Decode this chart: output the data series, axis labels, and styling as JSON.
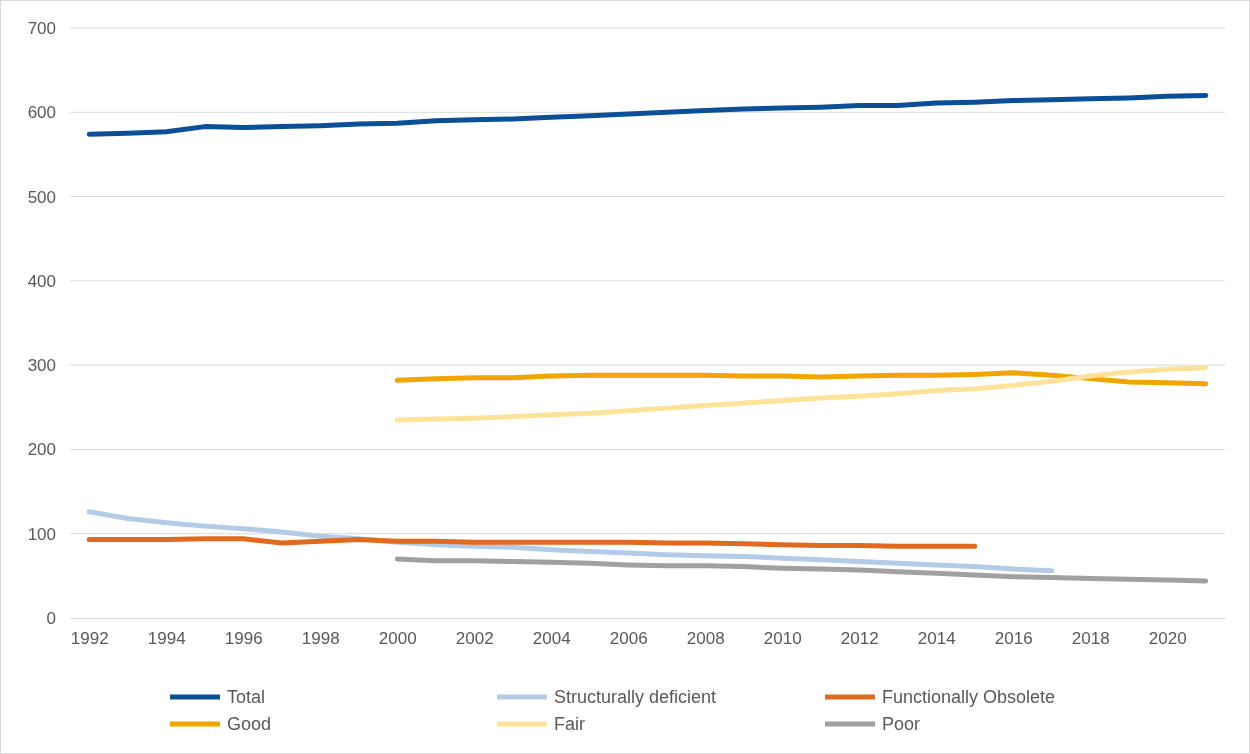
{
  "chart_data": {
    "type": "line",
    "xlim": [
      1991.5,
      2021.5
    ],
    "xticks": [
      1992,
      1994,
      1996,
      1998,
      2000,
      2002,
      2004,
      2006,
      2008,
      2010,
      2012,
      2014,
      2016,
      2018,
      2020
    ],
    "ylim": [
      0,
      700
    ],
    "yticks": [
      0,
      100,
      200,
      300,
      400,
      500,
      600,
      700
    ],
    "grid": "y",
    "legend": "bottom",
    "line_style": "solid",
    "marker": "none",
    "series": [
      {
        "name": "Total",
        "color": "#0b4f96",
        "x": [
          1992,
          1993,
          1994,
          1995,
          1996,
          1997,
          1998,
          1999,
          2000,
          2001,
          2002,
          2003,
          2004,
          2005,
          2006,
          2007,
          2008,
          2009,
          2010,
          2011,
          2012,
          2013,
          2014,
          2015,
          2016,
          2017,
          2018,
          2019,
          2020,
          2021
        ],
        "values": [
          574,
          575,
          577,
          583,
          582,
          583,
          584,
          586,
          587,
          590,
          591,
          592,
          594,
          596,
          598,
          600,
          602,
          604,
          605,
          606,
          608,
          608,
          611,
          612,
          614,
          615,
          616,
          617,
          619,
          620
        ]
      },
      {
        "name": "Structurally deficient",
        "color": "#b4cbe8",
        "x": [
          1992,
          1993,
          1994,
          1995,
          1996,
          1997,
          1998,
          1999,
          2000,
          2001,
          2002,
          2003,
          2004,
          2005,
          2006,
          2007,
          2008,
          2009,
          2010,
          2011,
          2012,
          2013,
          2014,
          2015,
          2016,
          2017
        ],
        "values": [
          126,
          118,
          113,
          109,
          106,
          102,
          97,
          94,
          90,
          87,
          85,
          84,
          81,
          79,
          77,
          75,
          74,
          73,
          71,
          69,
          67,
          65,
          63,
          61,
          58,
          56
        ]
      },
      {
        "name": "Functionally Obsolete",
        "color": "#e06a1f",
        "x": [
          1992,
          1993,
          1994,
          1995,
          1996,
          1997,
          1998,
          1999,
          2000,
          2001,
          2002,
          2003,
          2004,
          2005,
          2006,
          2007,
          2008,
          2009,
          2010,
          2011,
          2012,
          2013,
          2014,
          2015
        ],
        "values": [
          93,
          93,
          93,
          94,
          94,
          89,
          91,
          93,
          91,
          91,
          90,
          90,
          90,
          90,
          90,
          89,
          89,
          88,
          87,
          86,
          86,
          85,
          85,
          85
        ]
      },
      {
        "name": "Good",
        "color": "#f0a500",
        "x": [
          2000,
          2001,
          2002,
          2003,
          2004,
          2005,
          2006,
          2007,
          2008,
          2009,
          2010,
          2011,
          2012,
          2013,
          2014,
          2015,
          2016,
          2017,
          2018,
          2019,
          2020,
          2021
        ],
        "values": [
          282,
          284,
          285,
          285,
          287,
          288,
          288,
          288,
          288,
          287,
          287,
          286,
          287,
          288,
          288,
          289,
          291,
          288,
          284,
          280,
          279,
          278
        ]
      },
      {
        "name": "Fair",
        "color": "#fde39a",
        "x": [
          2000,
          2001,
          2002,
          2003,
          2004,
          2005,
          2006,
          2007,
          2008,
          2009,
          2010,
          2011,
          2012,
          2013,
          2014,
          2015,
          2016,
          2017,
          2018,
          2019,
          2020,
          2021
        ],
        "values": [
          235,
          236,
          237,
          239,
          241,
          243,
          246,
          249,
          252,
          255,
          258,
          261,
          263,
          266,
          270,
          272,
          276,
          281,
          287,
          292,
          295,
          297
        ]
      },
      {
        "name": "Poor",
        "color": "#a0a0a0",
        "x": [
          2000,
          2001,
          2002,
          2003,
          2004,
          2005,
          2006,
          2007,
          2008,
          2009,
          2010,
          2011,
          2012,
          2013,
          2014,
          2015,
          2016,
          2017,
          2018,
          2019,
          2020,
          2021
        ],
        "values": [
          70,
          68,
          68,
          67,
          66,
          65,
          63,
          62,
          62,
          61,
          59,
          58,
          57,
          55,
          53,
          51,
          49,
          48,
          47,
          46,
          45,
          44
        ]
      }
    ]
  }
}
